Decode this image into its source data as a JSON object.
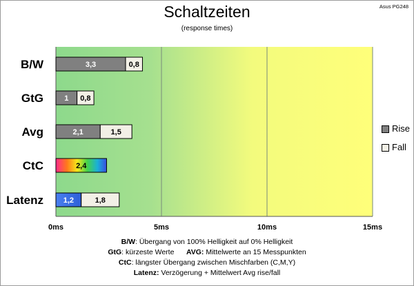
{
  "header": {
    "title": "Schaltzeiten",
    "subtitle": "(response times)",
    "corner_label": "Asus PG248"
  },
  "legend": [
    {
      "name": "Rise",
      "color": "#808080"
    },
    {
      "name": "Fall",
      "color": "#f2f0e6"
    }
  ],
  "notes": [
    {
      "k1": "B/W",
      "t1": ":  Übergang von 100% Helligkeit auf 0% Helligkeit",
      "k2": "",
      "t2": ""
    },
    {
      "k1": "GtG",
      "t1": ": kürzeste  Werte",
      "k2": "AVG:",
      "t2": " Mittelwerte  an 15 Messpunkten"
    },
    {
      "k1": "CtC",
      "t1": ": längster Übergang  zwischen Mischfarben  (C,M,Y)",
      "k2": "",
      "t2": ""
    },
    {
      "k1": "Latenz:",
      "t1": " Verzögerung  + Mittelwert  Avg rise/fall",
      "k2": "",
      "t2": ""
    }
  ],
  "colors": {
    "grad_green": "#8dd98c",
    "grad_yellow": "#ffff7a",
    "rise": "#808080",
    "fall": "#f2f0e6",
    "latenz_rise": "#3a6fe0"
  },
  "chart_data": {
    "type": "bar",
    "orientation": "horizontal",
    "stacked": true,
    "categories": [
      "B/W",
      "GtG",
      "Avg",
      "CtC",
      "Latenz"
    ],
    "series": [
      {
        "name": "Rise",
        "values": [
          3.3,
          1,
          2.1,
          2.4,
          1.2
        ],
        "labels": [
          "3,3",
          "1",
          "2,1",
          "2,4",
          "1,2"
        ]
      },
      {
        "name": "Fall",
        "values": [
          0.8,
          0.8,
          1.5,
          0,
          1.8
        ],
        "labels": [
          "0,8",
          "0,8",
          "1,5",
          "",
          "1,8"
        ]
      }
    ],
    "xlim": [
      0,
      15
    ],
    "x_ticks": [
      0,
      5,
      10,
      15
    ],
    "x_tick_labels": [
      "0ms",
      "5ms",
      "10ms",
      "15ms"
    ],
    "grid": true,
    "legend_position": "right",
    "special_fill": {
      "CtC": "rainbow"
    }
  }
}
